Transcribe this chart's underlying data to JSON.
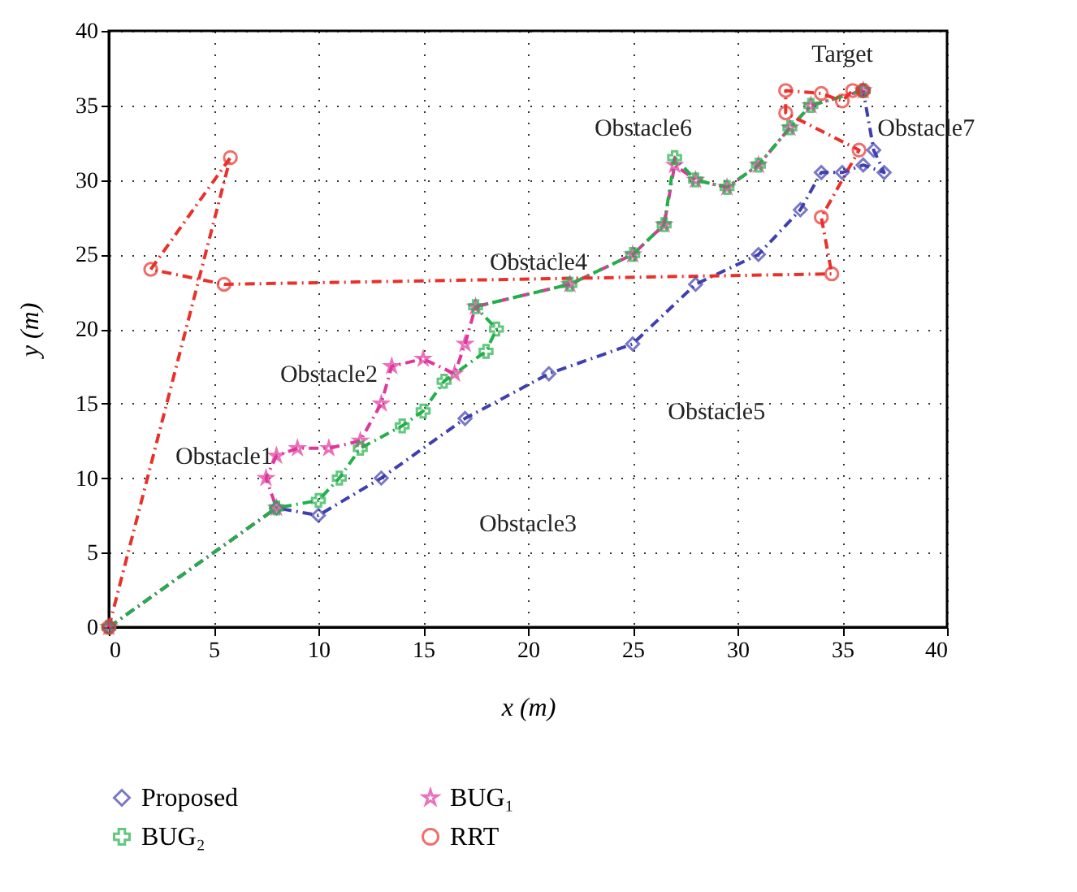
{
  "chart_data": {
    "type": "line",
    "xlabel": "x (m)",
    "ylabel": "y (m)",
    "xlim": [
      0,
      40
    ],
    "ylim": [
      0,
      40
    ],
    "xticks": [
      0,
      5,
      10,
      15,
      20,
      25,
      30,
      35,
      40
    ],
    "yticks": [
      0,
      5,
      10,
      15,
      20,
      25,
      30,
      35,
      40
    ],
    "grid": true,
    "legend": "bottom",
    "line_style": "dashed",
    "annotations": [
      "Obstacle1",
      "Obstacle2",
      "Obstacle3",
      "Obstacle4",
      "Obstacle5",
      "Obstacle6",
      "Obstacle7",
      "Target"
    ],
    "series": [
      {
        "name": "Proposed",
        "color": "#3f3faf",
        "marker": "diamond",
        "x": [
          0,
          8,
          10,
          13,
          17,
          21,
          25,
          28,
          31,
          33,
          34,
          35,
          36,
          37,
          36.5,
          36
        ],
        "values": [
          0,
          8,
          7.5,
          10,
          14,
          17,
          19,
          23,
          25,
          28,
          30.5,
          30.5,
          31,
          30.5,
          32,
          36
        ]
      },
      {
        "name": "BUG₁",
        "color": "#e0369c",
        "marker": "star",
        "x": [
          0,
          8,
          7.5,
          8,
          9,
          10.5,
          12,
          13,
          13.5,
          15,
          16.5,
          17,
          17.5,
          22,
          25,
          26.5,
          27,
          28,
          29.5,
          31,
          32.5,
          33.5,
          36
        ],
        "values": [
          0,
          8,
          10,
          11.5,
          12,
          12,
          12.5,
          15,
          17.5,
          18,
          17,
          19,
          21.5,
          23,
          25,
          27,
          31,
          30,
          29.5,
          31,
          33.5,
          35,
          36
        ]
      },
      {
        "name": "BUG₂",
        "color": "#22b04a",
        "marker": "cross",
        "x": [
          0,
          8,
          10,
          11,
          12,
          14,
          15,
          16,
          18,
          18.5,
          17.5,
          22,
          25,
          26.5,
          27,
          28,
          29.5,
          31,
          32.5,
          33.5,
          36
        ],
        "values": [
          0,
          8,
          8.5,
          10,
          12,
          13.5,
          14.5,
          16.5,
          18.5,
          20,
          21.5,
          23,
          25,
          27,
          31.5,
          30,
          29.5,
          31,
          33.5,
          35,
          36
        ]
      },
      {
        "name": "RRT",
        "color": "#e8312a",
        "marker": "circle",
        "x": [
          0,
          5.8,
          2,
          5.5,
          34.5,
          34,
          35.8,
          32.3,
          32.3,
          34,
          35,
          35.5,
          36
        ],
        "values": [
          0,
          31.5,
          24,
          23,
          23.7,
          27.5,
          32,
          34.5,
          36,
          35.8,
          35.3,
          36,
          36
        ]
      }
    ]
  }
}
